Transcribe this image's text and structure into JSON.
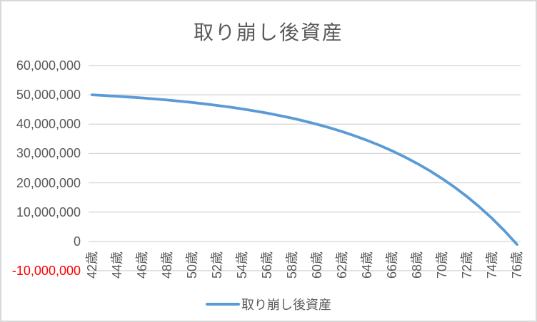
{
  "chart": {
    "title": "取り崩し後資産",
    "legend": {
      "label": "取り崩し後資産",
      "position": "bottom"
    }
  },
  "colors": {
    "series": "#5B9BD5",
    "gridline": "#D9D9D9",
    "axis_text": "#595959",
    "negative_tick": "#FF0000",
    "border": "#D9D9D9",
    "background": "#FFFFFF"
  },
  "y_axis": {
    "min": -10000000,
    "max": 60000000,
    "step": 10000000,
    "tick_labels": [
      "60,000,000",
      "50,000,000",
      "40,000,000",
      "30,000,000",
      "20,000,000",
      "10,000,000",
      "0",
      "-10,000,000"
    ]
  },
  "x_axis": {
    "unit": "歳",
    "tick_labels": [
      "42歳",
      "44歳",
      "46歳",
      "48歳",
      "50歳",
      "52歳",
      "54歳",
      "56歳",
      "58歳",
      "60歳",
      "62歳",
      "64歳",
      "66歳",
      "68歳",
      "70歳",
      "72歳",
      "74歳",
      "76歳"
    ],
    "label_interval_years": 2
  },
  "chart_data": {
    "type": "line",
    "title": "取り崩し後資産",
    "xlabel": "",
    "ylabel": "",
    "ylim": [
      -10000000,
      60000000
    ],
    "grid": true,
    "legend_position": "bottom",
    "x_unit": "歳",
    "ages": [
      42,
      43,
      44,
      45,
      46,
      47,
      48,
      49,
      50,
      51,
      52,
      53,
      54,
      55,
      56,
      57,
      58,
      59,
      60,
      61,
      62,
      63,
      64,
      65,
      66,
      67,
      68,
      69,
      70,
      71,
      72,
      73,
      74,
      75,
      76
    ],
    "series": [
      {
        "name": "取り崩し後資産",
        "color": "#5B9BD5",
        "values": [
          50000000,
          49770000,
          49520000,
          49240000,
          48940000,
          48600000,
          48240000,
          47840000,
          47400000,
          46930000,
          46400000,
          45830000,
          45200000,
          44510000,
          43760000,
          42930000,
          42030000,
          41040000,
          39960000,
          38770000,
          37470000,
          36040000,
          34480000,
          32770000,
          30900000,
          28850000,
          26610000,
          24150000,
          21450000,
          18510000,
          15280000,
          11740000,
          7860000,
          3620000,
          -1030000
        ]
      }
    ]
  }
}
